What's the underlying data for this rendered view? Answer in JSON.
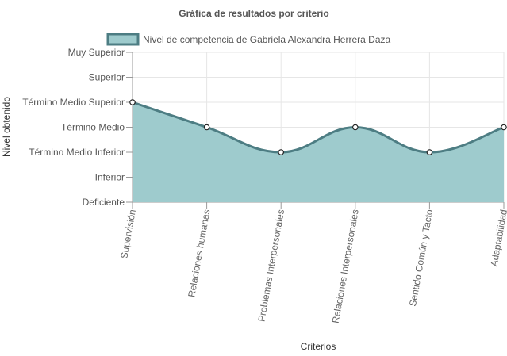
{
  "chart_data": {
    "type": "area",
    "title": "Gráfica de resultados por criterio",
    "xlabel": "Criterios",
    "ylabel": "Nivel obtenido",
    "y_categories": [
      "Deficiente",
      "Inferior",
      "Término Medio Inferior",
      "Término Medio",
      "Término Medio Superior",
      "Superior",
      "Muy Superior"
    ],
    "categories": [
      "Supervisión",
      "Relaciones humanas",
      "Problemas Interpersonales",
      "Relaciones Interpersonales",
      "Sentido Común y Tacto",
      "Adaptabilidad"
    ],
    "series": [
      {
        "name": "Nivel de competencia de Gabriela Alexandra Herrera Daza",
        "values": [
          4,
          3,
          2,
          3,
          2,
          3
        ]
      }
    ],
    "ylim": [
      0,
      6
    ],
    "grid": true,
    "legend": "top-center",
    "colors": {
      "fill": "#9ecbcd",
      "stroke": "#4d7d83"
    }
  }
}
